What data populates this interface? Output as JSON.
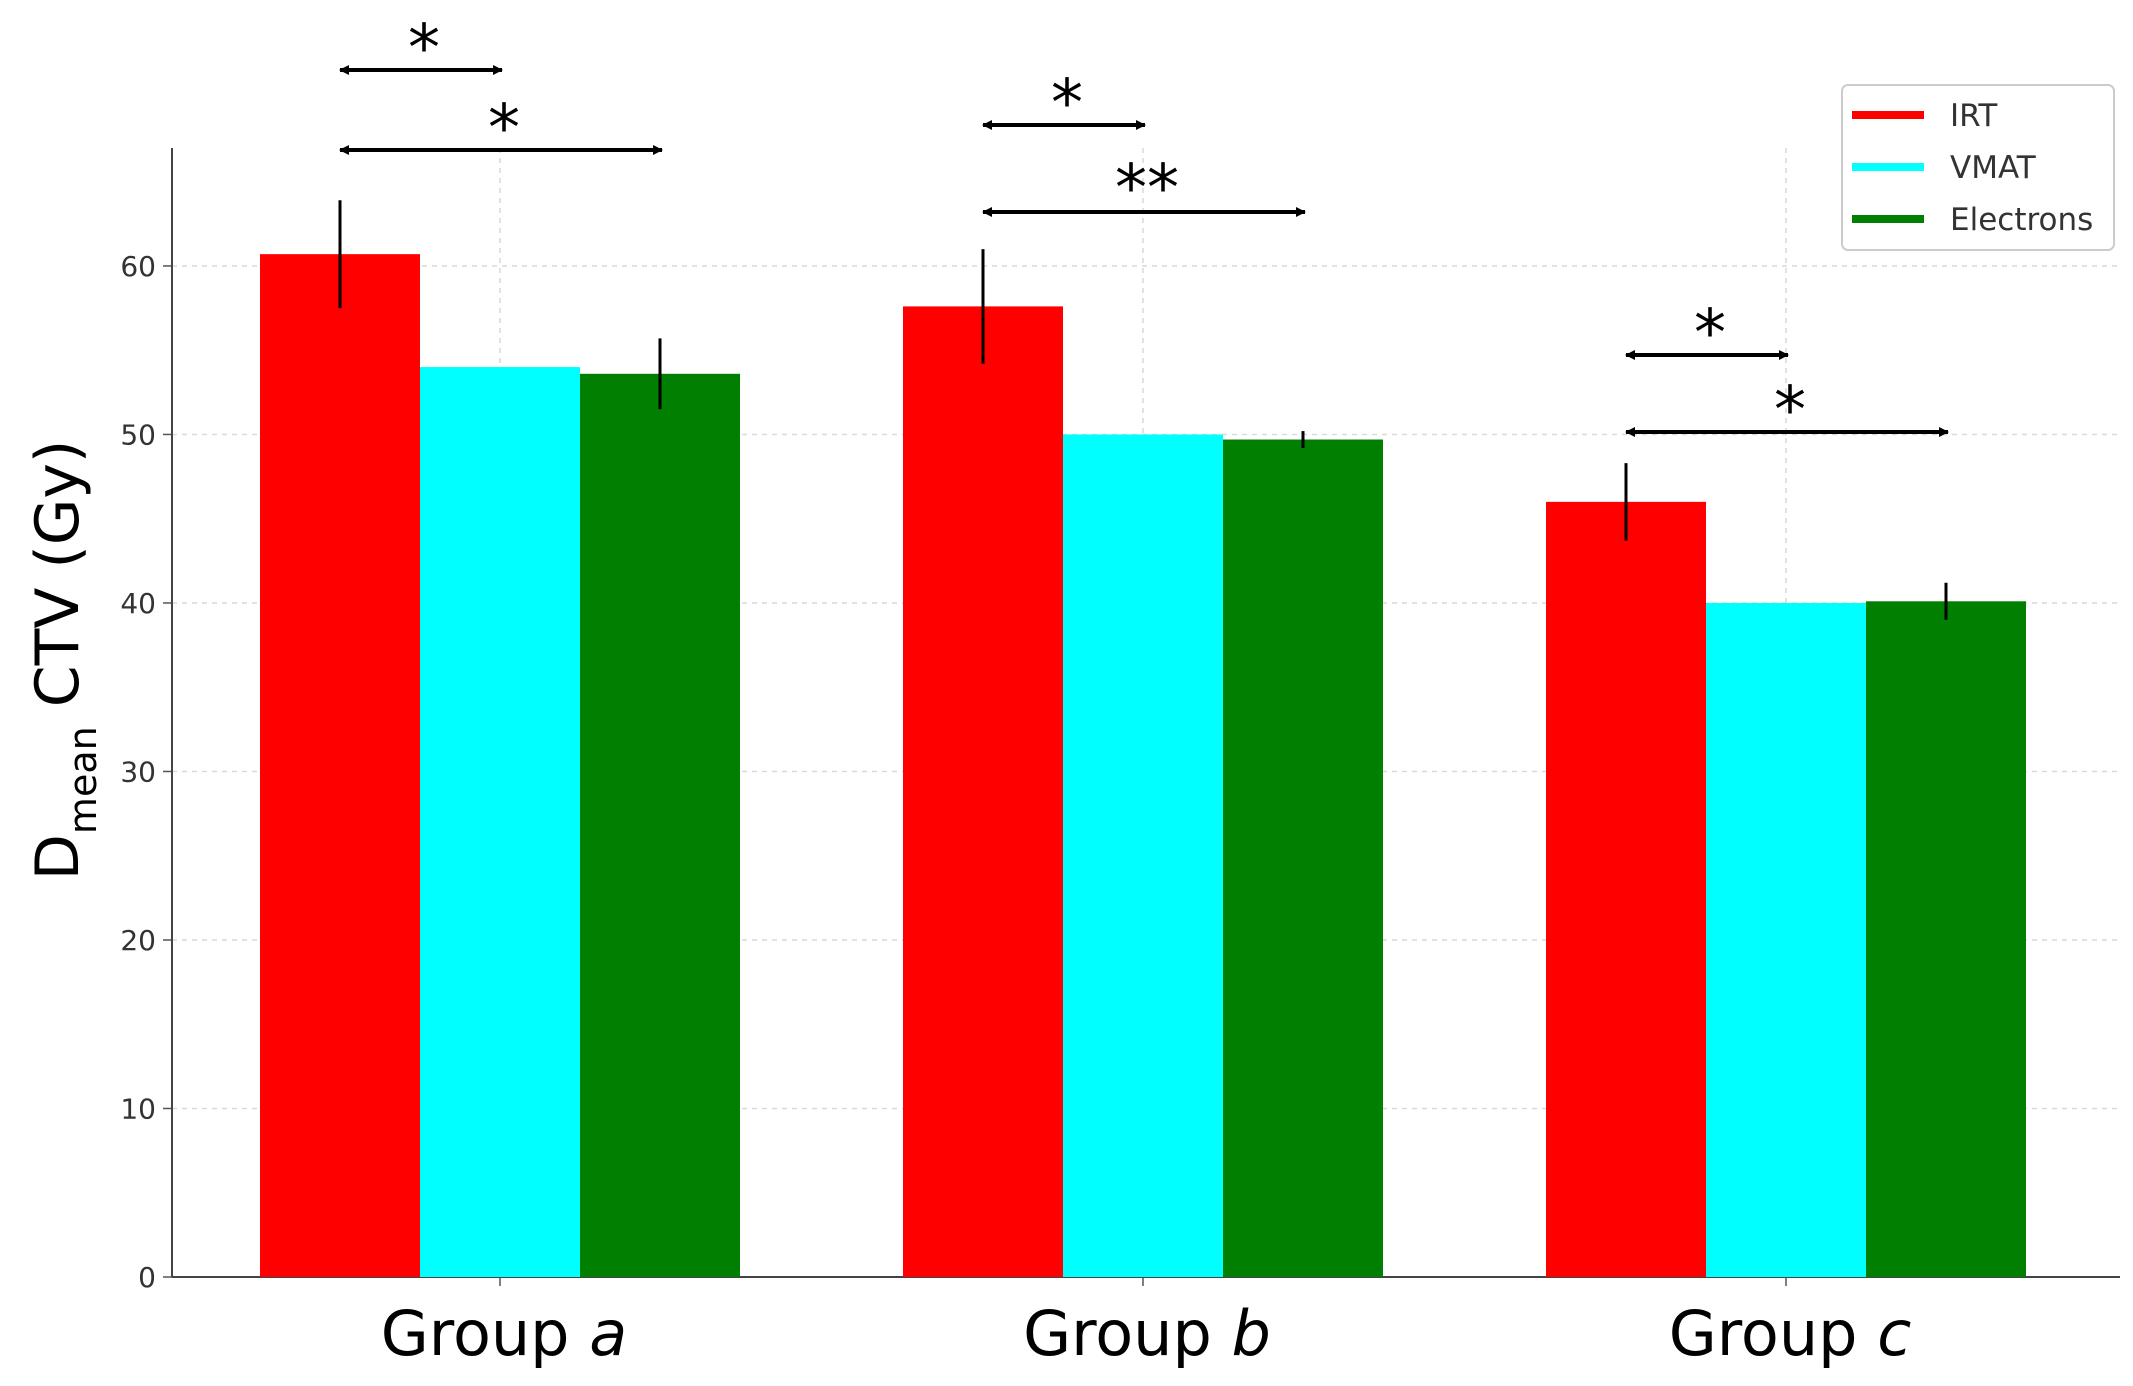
{
  "chart_data": {
    "type": "bar",
    "title": "",
    "xlabel": "",
    "ylabel": {
      "main": "D",
      "subscript": "mean",
      "rest": " CTV (Gy)"
    },
    "ylim": [
      0,
      67
    ],
    "yticks": [
      0,
      10,
      20,
      30,
      40,
      50,
      60
    ],
    "grid": true,
    "legend_position": "top-right",
    "categories": [
      {
        "prefix": "Group ",
        "letter": "a"
      },
      {
        "prefix": "Group ",
        "letter": "b"
      },
      {
        "prefix": "Group ",
        "letter": "c"
      }
    ],
    "series": [
      {
        "name": "IRT",
        "color": "#ff0000",
        "values": [
          60.7,
          57.6,
          46.0
        ],
        "errors": [
          3.2,
          3.4,
          2.3
        ]
      },
      {
        "name": "VMAT",
        "color": "#00ffff",
        "values": [
          54.0,
          50.0,
          40.0
        ],
        "errors": [
          0,
          0,
          0
        ]
      },
      {
        "name": "Electrons",
        "color": "#007f00",
        "values": [
          53.6,
          49.7,
          40.1
        ],
        "errors": [
          2.1,
          0.5,
          1.1
        ]
      }
    ],
    "annotations": [
      {
        "group": 0,
        "from": 0,
        "to": 1,
        "level": 0,
        "label": "*"
      },
      {
        "group": 0,
        "from": 0,
        "to": 2,
        "level": 1,
        "label": "*"
      },
      {
        "group": 1,
        "from": 0,
        "to": 1,
        "level": 0,
        "label": "*"
      },
      {
        "group": 1,
        "from": 0,
        "to": 2,
        "level": 1,
        "label": "**"
      },
      {
        "group": 2,
        "from": 0,
        "to": 1,
        "level": 0,
        "label": "*"
      },
      {
        "group": 2,
        "from": 0,
        "to": 2,
        "level": 1,
        "label": "*"
      }
    ]
  }
}
